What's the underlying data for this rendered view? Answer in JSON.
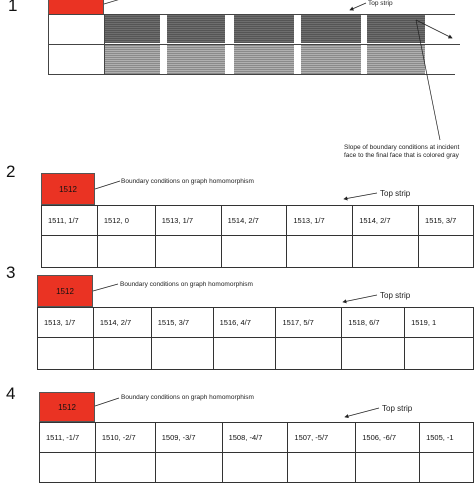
{
  "panel1": {
    "number": "1",
    "top_strip_label": "Top strip",
    "slope_note": "Slope of boundary conditions at incident face to the final face that is colored gray"
  },
  "panel2": {
    "number": "2",
    "red_label": "1512",
    "boundary_label": "Boundary conditions on graph homomorphism",
    "top_strip_label": "Top strip",
    "cells": [
      "1511, 1/7",
      "1512, 0",
      "1513, 1/7",
      "1514, 2/7",
      "1513, 1/7",
      "1514, 2/7",
      "1515, 3/7"
    ]
  },
  "panel3": {
    "number": "3",
    "red_label": "1512",
    "boundary_label": "Boundary conditions on graph homomorphism",
    "top_strip_label": "Top strip",
    "cells": [
      "1513, 1/7",
      "1514, 2/7",
      "1515, 3/7",
      "1516, 4/7",
      "1517, 5/7",
      "1518, 6/7",
      "1519, 1"
    ]
  },
  "panel4": {
    "number": "4",
    "red_label": "1512",
    "boundary_label": "Boundary conditions on graph homomorphism",
    "top_strip_label": "Top strip",
    "cells": [
      "1511, -1/7",
      "1510, -2/7",
      "1509, -3/7",
      "1508, -4/7",
      "1507, -5/7",
      "1506, -6/7",
      "1505, -1"
    ]
  }
}
